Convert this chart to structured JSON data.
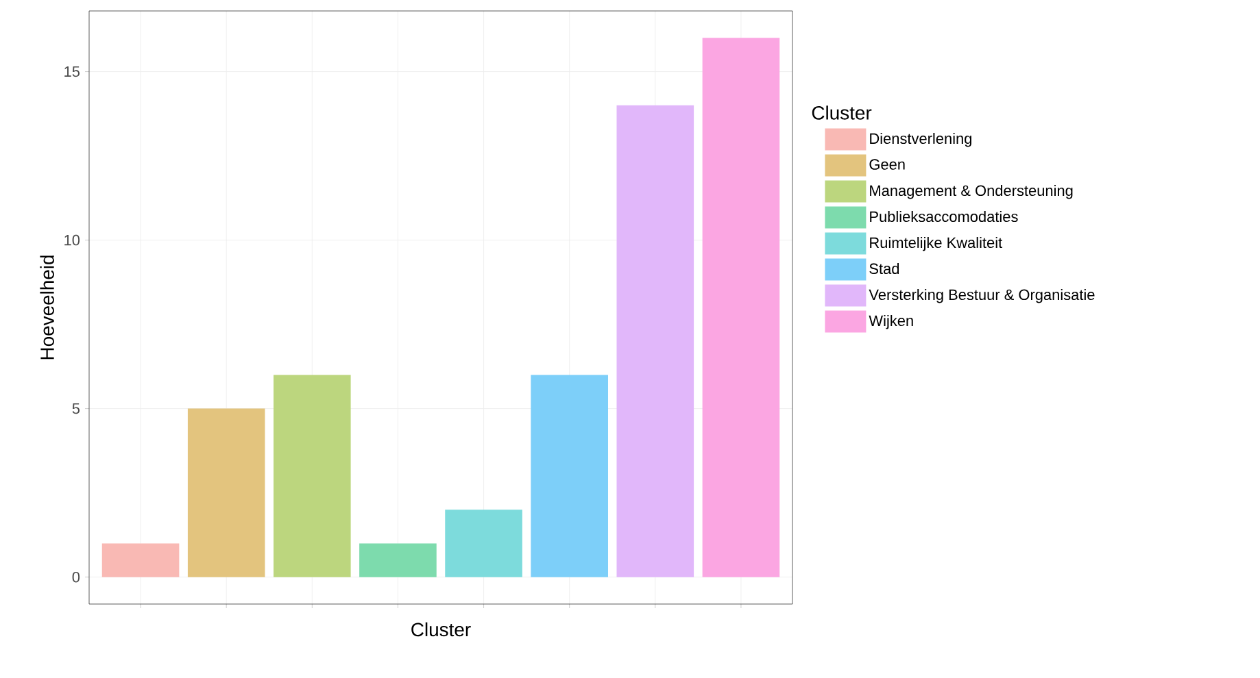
{
  "chart_data": {
    "type": "bar",
    "xlabel": "Cluster",
    "ylabel": "Hoeveelheid",
    "legend_title": "Cluster",
    "categories": [
      null,
      null,
      null,
      null,
      null,
      null,
      null,
      null
    ],
    "series": [
      {
        "name": "Dienstverlening",
        "color": "#f9b9b4",
        "values": [
          1,
          null,
          null,
          null,
          null,
          null,
          null,
          null
        ]
      },
      {
        "name": "Geen",
        "color": "#e3c47e",
        "values": [
          null,
          5,
          null,
          null,
          null,
          null,
          null,
          null
        ]
      },
      {
        "name": "Management & Ondersteuning",
        "color": "#bcd67e",
        "values": [
          null,
          null,
          6,
          null,
          null,
          null,
          null,
          null
        ]
      },
      {
        "name": "Publieksaccomodaties",
        "color": "#7ddbad",
        "values": [
          null,
          null,
          null,
          1,
          null,
          null,
          null,
          null
        ]
      },
      {
        "name": "Ruimtelijke Kwaliteit",
        "color": "#7ddbdc",
        "values": [
          null,
          null,
          null,
          null,
          2,
          null,
          null,
          null
        ]
      },
      {
        "name": "Stad",
        "color": "#7dcff9",
        "values": [
          null,
          null,
          null,
          null,
          null,
          6,
          null,
          null
        ]
      },
      {
        "name": "Versterking Bestuur & Organisatie",
        "color": "#e1b7fa",
        "values": [
          null,
          null,
          null,
          null,
          null,
          null,
          14,
          null
        ]
      },
      {
        "name": "Wijken",
        "color": "#fba6e2",
        "values": [
          null,
          null,
          null,
          null,
          null,
          null,
          null,
          16
        ]
      }
    ],
    "ylim": [
      -0.8,
      16.8
    ],
    "yticks": [
      0,
      5,
      10,
      15
    ],
    "grid": true,
    "legend": "right",
    "tick_labels": "y"
  }
}
